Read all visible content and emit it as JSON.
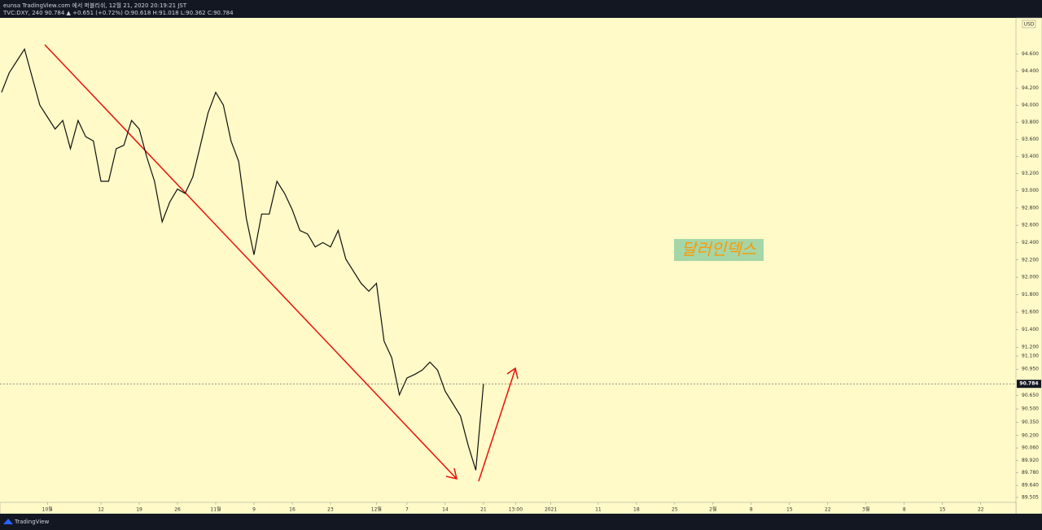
{
  "header": {
    "publisher": "eunsa TradingView.com 에서 퍼블리쉬, 12월 21, 2020 20:19:21 JST",
    "ticker": "TVC:DXY, 240 90.784 ▲ +0.651 (+0.72%) O:90.618 H:91.018 L:90.362 C:90.784"
  },
  "footer": {
    "brand": "TradingView"
  },
  "chart_data": {
    "type": "line",
    "color": "#111111",
    "log": true,
    "grid": false,
    "annotation": "달러인덱스",
    "currency": "USD",
    "price_label": "90.784",
    "x": [
      -6,
      -5,
      -4,
      -3,
      -2,
      -1,
      0,
      1,
      2,
      3,
      4,
      5,
      6,
      7,
      8,
      9,
      10,
      11,
      12,
      13,
      14,
      15,
      16,
      17,
      18,
      19,
      20,
      21,
      22,
      23,
      24,
      25,
      26,
      27,
      28,
      29,
      30,
      31,
      32,
      33,
      34,
      35,
      36,
      37,
      38,
      39,
      40,
      41,
      42,
      43,
      44,
      45,
      46,
      47,
      48,
      49,
      50,
      51,
      52,
      53,
      54,
      55,
      56,
      57
    ],
    "values": [
      94.15,
      94.38,
      94.52,
      94.66,
      94.33,
      94.0,
      93.86,
      93.72,
      93.82,
      93.49,
      93.82,
      93.63,
      93.58,
      93.11,
      93.11,
      93.49,
      93.53,
      93.82,
      93.72,
      93.39,
      93.11,
      92.64,
      92.87,
      93.02,
      92.97,
      93.16,
      93.53,
      93.91,
      94.15,
      94.0,
      93.58,
      93.34,
      92.68,
      92.26,
      92.73,
      92.73,
      93.11,
      92.97,
      92.78,
      92.54,
      92.5,
      92.35,
      92.4,
      92.35,
      92.54,
      92.21,
      92.07,
      91.93,
      91.84,
      91.93,
      91.27,
      91.08,
      90.66,
      90.85,
      90.89,
      90.94,
      91.03,
      90.94,
      90.7,
      90.56,
      90.42,
      90.09,
      89.81,
      90.784
    ],
    "xlim": [
      -6.2,
      126.6
    ],
    "ylim": [
      89.45,
      95.03
    ],
    "xticks": [
      {
        "value": 0,
        "label": "10월"
      },
      {
        "value": 7,
        "label": "12"
      },
      {
        "value": 12,
        "label": "19"
      },
      {
        "value": 17,
        "label": "26"
      },
      {
        "value": 22,
        "label": "11월"
      },
      {
        "value": 27,
        "label": "9"
      },
      {
        "value": 32,
        "label": "16"
      },
      {
        "value": 37,
        "label": "23"
      },
      {
        "value": 43,
        "label": "12월"
      },
      {
        "value": 47,
        "label": "7"
      },
      {
        "value": 52,
        "label": "14"
      },
      {
        "value": 57,
        "label": "21"
      },
      {
        "value": 61.2,
        "label": "13:00"
      },
      {
        "value": 65.8,
        "label": "2021"
      },
      {
        "value": 72,
        "label": "11"
      },
      {
        "value": 77,
        "label": "18"
      },
      {
        "value": 82,
        "label": "25"
      },
      {
        "value": 87,
        "label": "2월"
      },
      {
        "value": 92,
        "label": "8"
      },
      {
        "value": 97,
        "label": "15"
      },
      {
        "value": 102,
        "label": "22"
      },
      {
        "value": 107,
        "label": "3월"
      },
      {
        "value": 112,
        "label": "8"
      },
      {
        "value": 117,
        "label": "15"
      },
      {
        "value": 122,
        "label": "22"
      }
    ],
    "yticks": [
      {
        "value": 94.6,
        "label": "94.600"
      },
      {
        "value": 94.4,
        "label": "94.400"
      },
      {
        "value": 94.2,
        "label": "94.200"
      },
      {
        "value": 94.0,
        "label": "94.000"
      },
      {
        "value": 93.8,
        "label": "93.800"
      },
      {
        "value": 93.6,
        "label": "93.600"
      },
      {
        "value": 93.4,
        "label": "93.400"
      },
      {
        "value": 93.2,
        "label": "93.200"
      },
      {
        "value": 93.0,
        "label": "93.000"
      },
      {
        "value": 92.8,
        "label": "92.800"
      },
      {
        "value": 92.6,
        "label": "92.600"
      },
      {
        "value": 92.4,
        "label": "92.400"
      },
      {
        "value": 92.2,
        "label": "92.200"
      },
      {
        "value": 92.0,
        "label": "92.000"
      },
      {
        "value": 91.8,
        "label": "91.800"
      },
      {
        "value": 91.6,
        "label": "91.600"
      },
      {
        "value": 91.4,
        "label": "91.400"
      },
      {
        "value": 91.2,
        "label": "91.200"
      },
      {
        "value": 91.1,
        "label": "91.100"
      },
      {
        "value": 90.95,
        "label": "90.950"
      },
      {
        "value": 90.65,
        "label": "90.650"
      },
      {
        "value": 90.5,
        "label": "90.500"
      },
      {
        "value": 90.35,
        "label": "90.350"
      },
      {
        "value": 90.2,
        "label": "90.200"
      },
      {
        "value": 90.06,
        "label": "90.060"
      },
      {
        "value": 89.92,
        "label": "89.920"
      },
      {
        "value": 89.78,
        "label": "89.780"
      },
      {
        "value": 89.64,
        "label": "89.640"
      },
      {
        "value": 89.505,
        "label": "89.505"
      }
    ]
  }
}
